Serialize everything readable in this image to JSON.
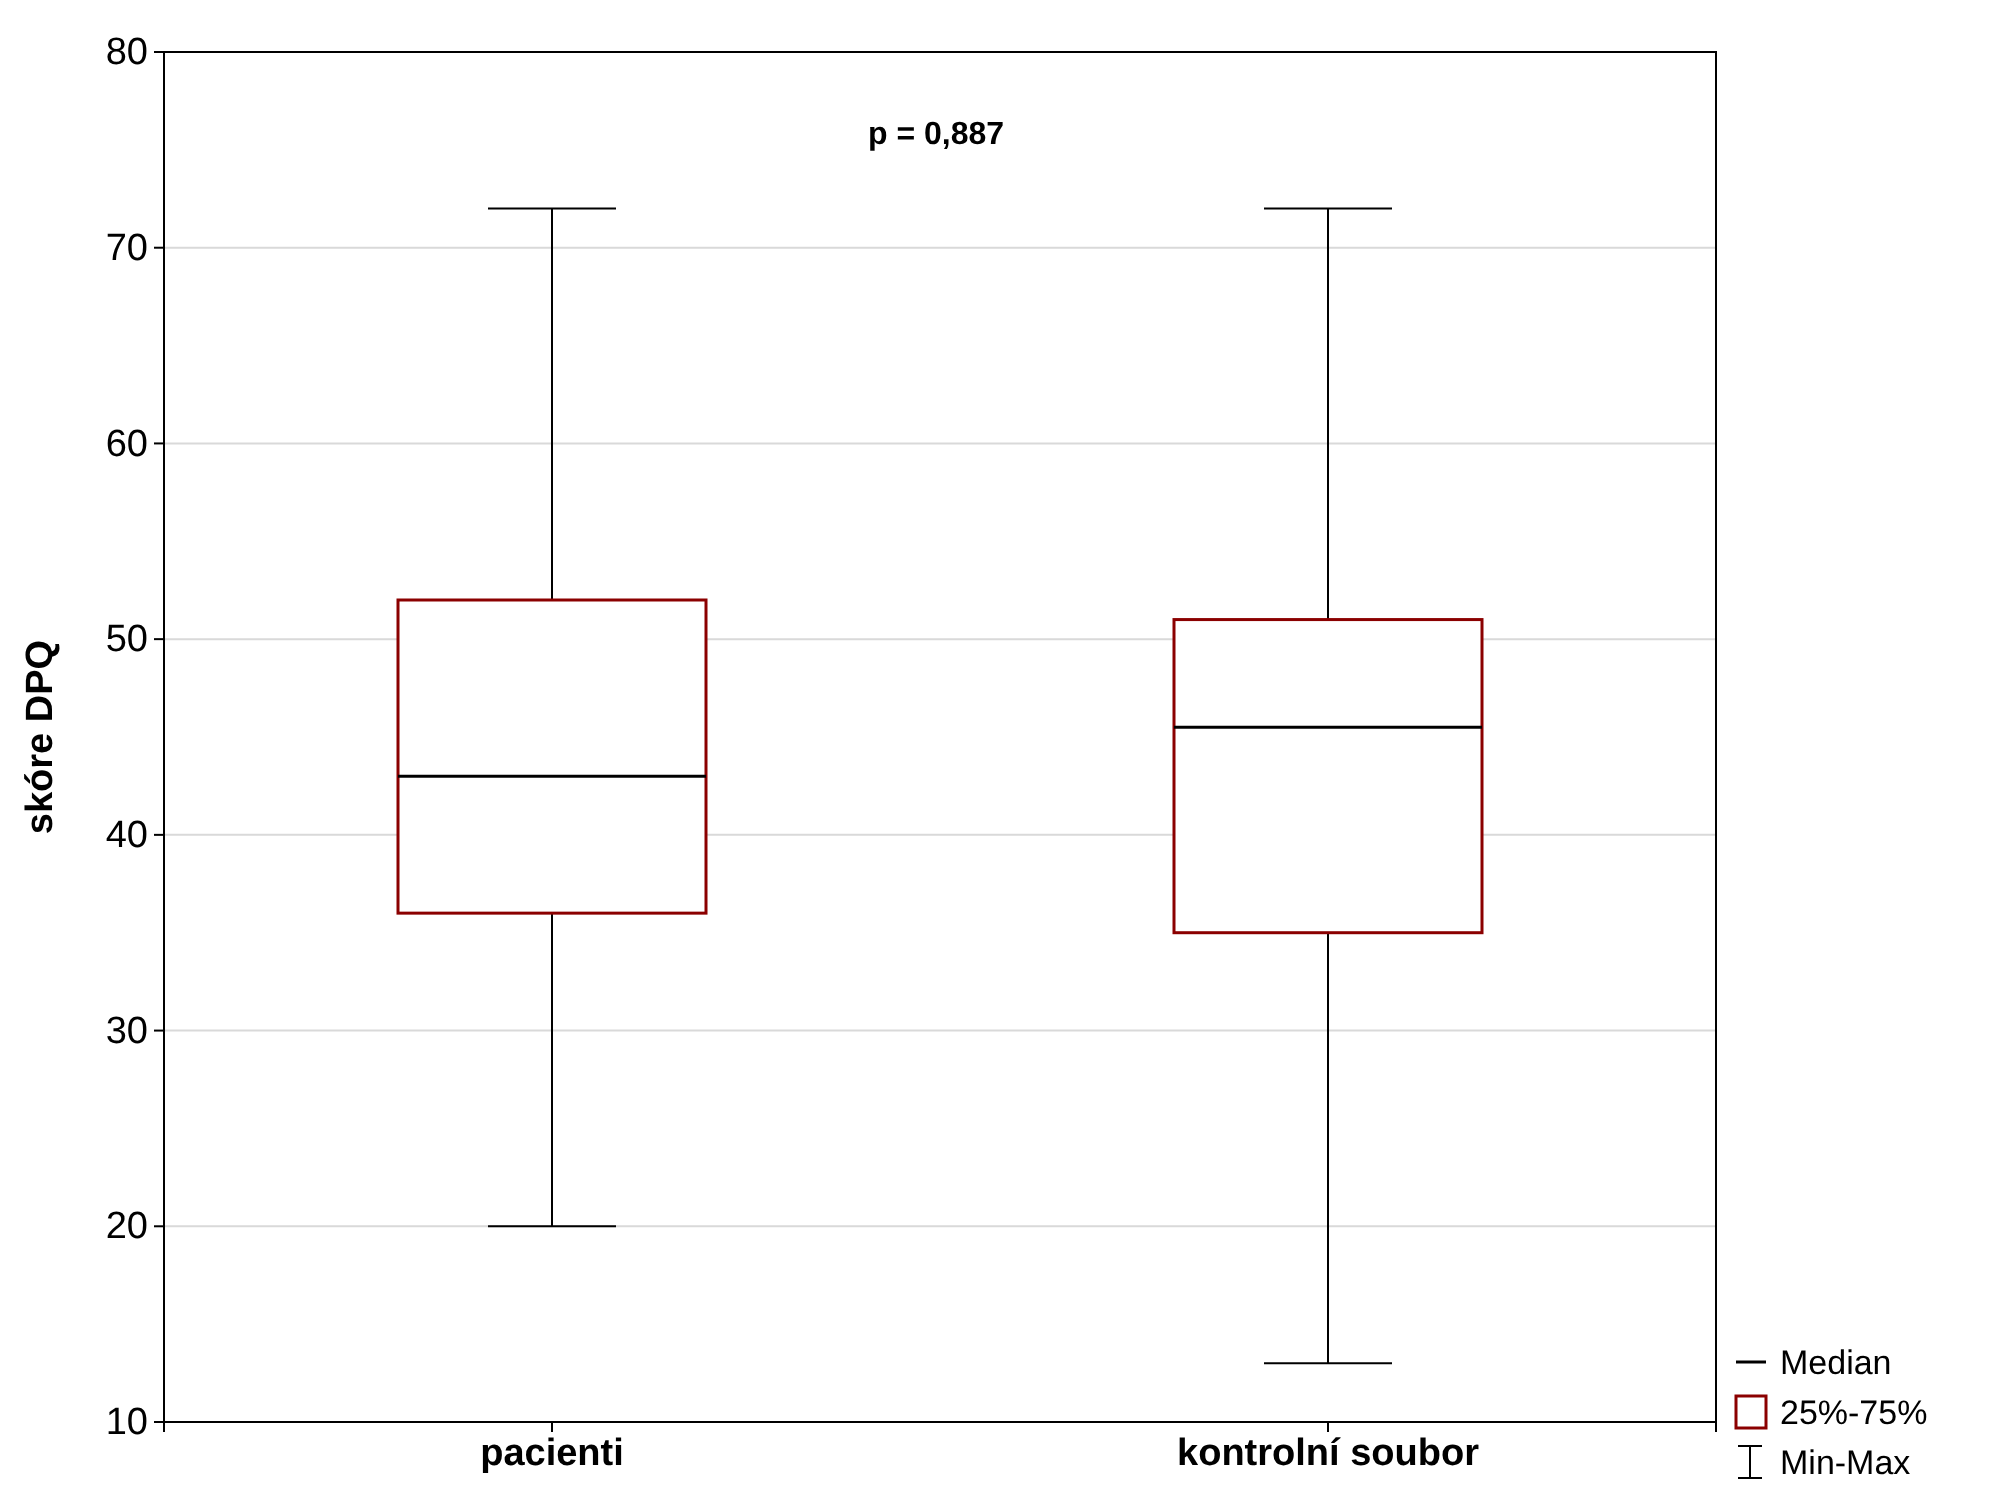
{
  "chart_data": {
    "type": "box",
    "ylabel": "skóre DPQ",
    "categories": [
      "pacienti",
      "kontrolní soubor"
    ],
    "boxes": [
      {
        "low": 20,
        "q1": 36,
        "median": 43,
        "q3": 52,
        "high": 72
      },
      {
        "low": 13,
        "q1": 35,
        "median": 45.5,
        "q3": 51,
        "high": 72
      }
    ],
    "color": "#8b0000",
    "ylim": [
      10,
      80
    ],
    "yticks": [
      10,
      20,
      30,
      40,
      50,
      60,
      70,
      80
    ],
    "grid": "y",
    "annotations": [
      "p = 0,887",
      "Median",
      "25%-75%",
      "Min-Max"
    ]
  }
}
